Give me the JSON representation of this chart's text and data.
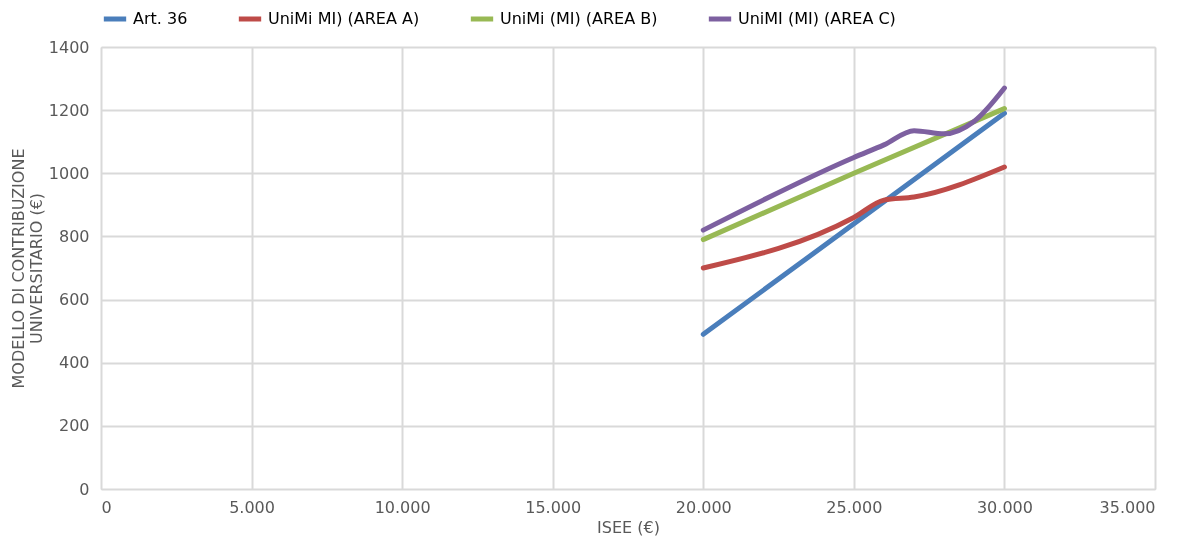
{
  "chart_data": {
    "type": "line",
    "xlabel": "ISEE (€)",
    "ylabel": "MODELLO DI CONTRIBUZIONE\nUNIVERSITARIO (€)",
    "xlim": [
      0,
      35000
    ],
    "xticks": [
      0,
      {
        "value": 5000,
        "label": "5.000"
      },
      {
        "value": 10000,
        "label": "10.000"
      },
      {
        "value": 15000,
        "label": "15.000"
      },
      {
        "value": 20000,
        "label": "20.000"
      },
      {
        "value": 25000,
        "label": "25.000"
      },
      {
        "value": 30000,
        "label": "30.000"
      },
      {
        "value": 35000,
        "label": "35.000"
      }
    ],
    "ylim": [
      0,
      1400
    ],
    "yticks": [
      0,
      200,
      400,
      600,
      800,
      1000,
      1200,
      1400
    ],
    "grid": true,
    "legend": "top",
    "marker": "none",
    "line_style": "solid",
    "series": [
      {
        "name": "Art. 36",
        "color": "#4a7ebb",
        "x": [
          20000,
          30000
        ],
        "values": [
          490,
          1190
        ]
      },
      {
        "name": "UniMi MI) (AREA A)",
        "color": "#be4b48",
        "x": [
          20000,
          25000,
          26000,
          27000,
          30000
        ],
        "values": [
          700,
          860,
          915,
          925,
          1020
        ]
      },
      {
        "name": "UniMi (MI) (AREA B)",
        "color": "#98b954",
        "x": [
          20000,
          25000,
          30000
        ],
        "values": [
          790,
          1000,
          1205
        ]
      },
      {
        "name": "UniMI (MI) (AREA C)",
        "color": "#7d60a0",
        "x": [
          20000,
          25000,
          26000,
          27000,
          28000,
          29000,
          30000
        ],
        "values": [
          820,
          1050,
          1090,
          1135,
          1125,
          1165,
          1270
        ]
      }
    ]
  }
}
